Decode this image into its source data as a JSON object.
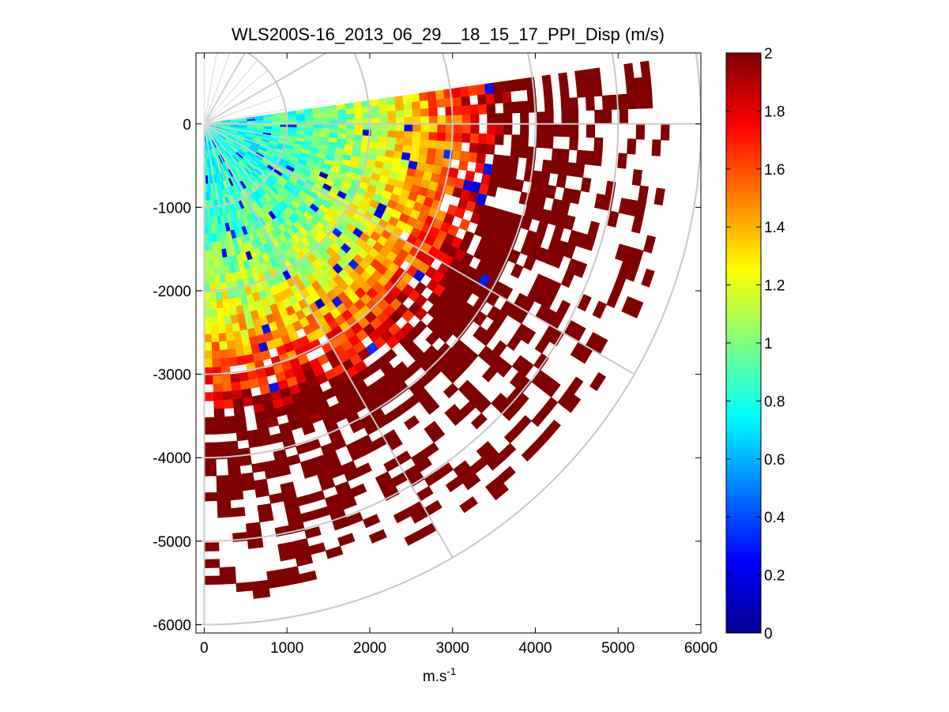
{
  "chart_data": {
    "type": "heatmap",
    "subtype": "ppi-polar-sector",
    "title": "WLS200S-16_2013_06_29__18_15_17_PPI_Disp (m/s)",
    "xlabel": "m.s",
    "xlabel_superscript": "-1",
    "ylabel": "",
    "xlim": [
      -100,
      6000
    ],
    "ylim": [
      -6100,
      850
    ],
    "xticks": [
      0,
      1000,
      2000,
      3000,
      4000,
      5000,
      6000
    ],
    "yticks": [
      0,
      -1000,
      -2000,
      -3000,
      -4000,
      -5000,
      -6000
    ],
    "polar_grid": {
      "range_rings_m": [
        1000,
        2000,
        3000,
        4000,
        5000,
        6000
      ],
      "spoke_angles_deg": [
        0,
        -30,
        -60,
        -90,
        30,
        60
      ]
    },
    "sector": {
      "azimuth_from_deg": -90,
      "azimuth_to_deg": 8,
      "max_range_m": 5700,
      "azimuth_step_deg": 2,
      "range_gate_m": 100
    },
    "colorbar": {
      "colormap": "jet",
      "min": 0,
      "max": 2,
      "ticks": [
        0,
        0.2,
        0.4,
        0.6,
        0.8,
        1,
        1.2,
        1.4,
        1.6,
        1.8,
        2
      ]
    },
    "value_model": {
      "description": "Dispersion increases with range: ~0.8 m/s near the lidar rising to saturation (2 m/s) beyond ~3500 m; data coverage thins at long range",
      "near_value": 0.8,
      "saturation_range_m": 3500,
      "coverage_falloff_start_m": 2600
    }
  }
}
